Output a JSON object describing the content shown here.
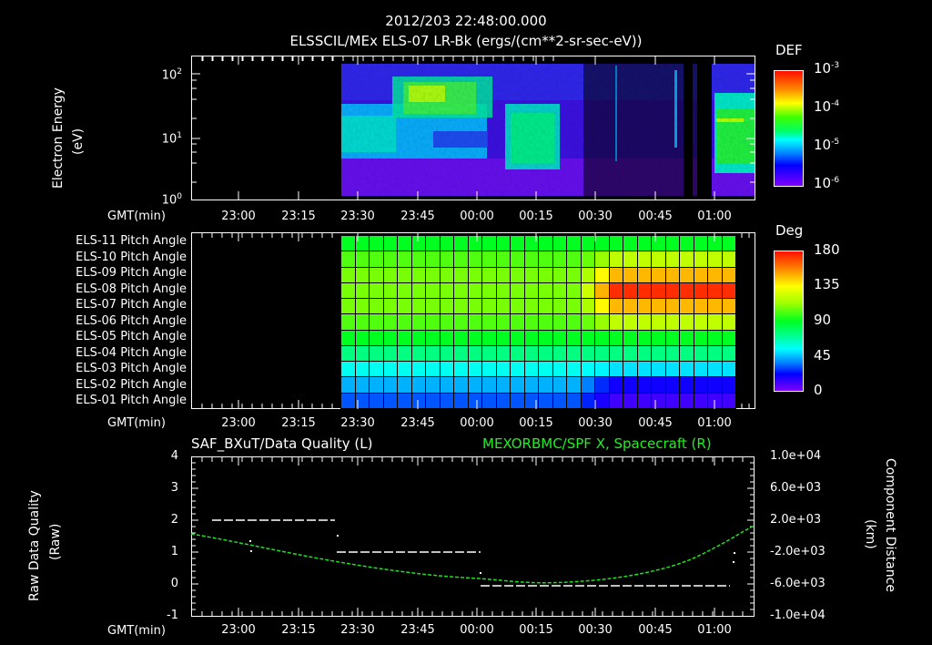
{
  "header": {
    "timestamp": "2012/203 22:48:00.000",
    "subtitle": "ELSSCIL/MEx ELS-07 LR-Bk  (ergs/(cm**2-sr-sec-eV))"
  },
  "panel1": {
    "ylabel": "Electron Energy",
    "yunit": "(eV)",
    "yticks": [
      {
        "base": "10",
        "exp": "2"
      },
      {
        "base": "10",
        "exp": "1"
      },
      {
        "base": "10",
        "exp": "0"
      }
    ],
    "xlabel": "GMT(min)",
    "colorbar": {
      "title": "DEF",
      "ticks": [
        {
          "base": "10",
          "exp": "-3"
        },
        {
          "base": "10",
          "exp": "-4"
        },
        {
          "base": "10",
          "exp": "-5"
        },
        {
          "base": "10",
          "exp": "-6"
        }
      ]
    }
  },
  "panel2": {
    "row_labels": [
      "ELS-11 Pitch Angle",
      "ELS-10 Pitch Angle",
      "ELS-09 Pitch Angle",
      "ELS-08 Pitch Angle",
      "ELS-07 Pitch Angle",
      "ELS-06 Pitch Angle",
      "ELS-05 Pitch Angle",
      "ELS-04 Pitch Angle",
      "ELS-03 Pitch Angle",
      "ELS-02 Pitch Angle",
      "ELS-01 Pitch Angle"
    ],
    "xlabel": "GMT(min)",
    "colorbar": {
      "title": "Deg",
      "ticks": [
        "180",
        "135",
        "90",
        "45",
        "0"
      ]
    }
  },
  "panel3": {
    "left_title": "SAF_BXuT/Data Quality (L)",
    "right_title": "MEXORBMC/SPF X, Spacecraft (R)",
    "ylabel_left": "Raw Data Quality",
    "yunit_left": "(Raw)",
    "yticks_left": [
      "4",
      "3",
      "2",
      "1",
      "0",
      "-1"
    ],
    "ylabel_right": "Component Distance",
    "yunit_right": "(km)",
    "yticks_right": [
      "1.0e+04",
      "6.0e+03",
      "2.0e+03",
      "-2.0e+03",
      "-6.0e+03",
      "-1.0e+04"
    ],
    "xlabel": "GMT(min)"
  },
  "xticks": [
    "23:00",
    "23:15",
    "23:30",
    "23:45",
    "00:00",
    "00:15",
    "00:30",
    "00:45",
    "01:00"
  ],
  "colors": {
    "background": "#000000",
    "axis": "#ffffff",
    "orbit_line": "#22dd22",
    "right_title": "#22ee22"
  },
  "chart_data": [
    {
      "type": "heatmap",
      "title": "ELSSCIL/MEx ELS-07 LR-Bk (ergs/(cm**2-sr-sec-eV))",
      "xlabel": "GMT(min)",
      "ylabel": "Electron Energy (eV)",
      "yscale": "log",
      "ylim": [
        1,
        150
      ],
      "x_range": [
        "22:48",
        "01:10"
      ],
      "data_start": "23:27",
      "colorbar": {
        "label": "DEF",
        "scale": "log",
        "range": [
          1e-06,
          0.001
        ]
      },
      "features": [
        {
          "time": "23:38-23:58",
          "energy_eV": "30-80",
          "level": "~1e-4 (green-yellow)"
        },
        {
          "time": "23:27-00:00",
          "energy_eV": "3-20",
          "level": "~3e-5 (cyan-green)"
        },
        {
          "time": "00:05-00:17",
          "energy_eV": "3-25",
          "level": "~5e-5 (green)"
        },
        {
          "time": "01:03-01:10",
          "energy_eV": "3-20",
          "level": "~8e-5 (green)"
        }
      ]
    },
    {
      "type": "heatmap",
      "title": "ELS Pitch Angle",
      "xlabel": "GMT(min)",
      "categories": [
        "ELS-11",
        "ELS-10",
        "ELS-09",
        "ELS-08",
        "ELS-07",
        "ELS-06",
        "ELS-05",
        "ELS-04",
        "ELS-03",
        "ELS-02",
        "ELS-01"
      ],
      "colorbar": {
        "label": "Deg",
        "range": [
          0,
          180
        ],
        "ticks": [
          0,
          45,
          90,
          135,
          180
        ]
      },
      "columns": 28,
      "series": [
        {
          "name": "ELS-11",
          "before_0030": 100,
          "after_0030": 100
        },
        {
          "name": "ELS-10",
          "before_0030": 110,
          "after_0030": 125
        },
        {
          "name": "ELS-09",
          "before_0030": 115,
          "after_0030": 150
        },
        {
          "name": "ELS-08",
          "before_0030": 115,
          "after_0030": 175
        },
        {
          "name": "ELS-07",
          "before_0030": 115,
          "after_0030": 150
        },
        {
          "name": "ELS-06",
          "before_0030": 110,
          "after_0030": 125
        },
        {
          "name": "ELS-05",
          "before_0030": 100,
          "after_0030": 100
        },
        {
          "name": "ELS-04",
          "before_0030": 85,
          "after_0030": 85
        },
        {
          "name": "ELS-03",
          "before_0030": 70,
          "after_0030": 65
        },
        {
          "name": "ELS-02",
          "before_0030": 60,
          "after_0030": 35
        },
        {
          "name": "ELS-01",
          "before_0030": 50,
          "after_0030": 20
        }
      ]
    },
    {
      "type": "line",
      "title": "SAF_BXuT/Data Quality (L) ; MEXORBMC/SPF X, Spacecraft (R)",
      "xlabel": "GMT(min)",
      "ylabel": "Raw Data Quality (Raw)",
      "ylim": [
        -1,
        4
      ],
      "y2label": "Component Distance (km)",
      "y2lim": [
        -10000,
        10000
      ],
      "series": [
        {
          "name": "Data Quality (L)",
          "segments": [
            {
              "x": [
                "22:53",
                "23:14"
              ],
              "y": 2
            },
            {
              "x": [
                "23:14",
                "23:47"
              ],
              "y": 1
            },
            {
              "x": [
                "00:00",
                "01:05"
              ],
              "y": 0
            }
          ]
        },
        {
          "name": "SPF X Spacecraft (R)",
          "x": [
            "22:48",
            "23:00",
            "23:15",
            "23:30",
            "23:45",
            "00:00",
            "00:15",
            "00:25",
            "00:30",
            "00:45",
            "01:00",
            "01:10"
          ],
          "values": [
            0,
            -800,
            -2000,
            -3200,
            -4400,
            -5500,
            -6000,
            -6100,
            -6000,
            -4700,
            -1800,
            1200
          ]
        }
      ]
    }
  ]
}
